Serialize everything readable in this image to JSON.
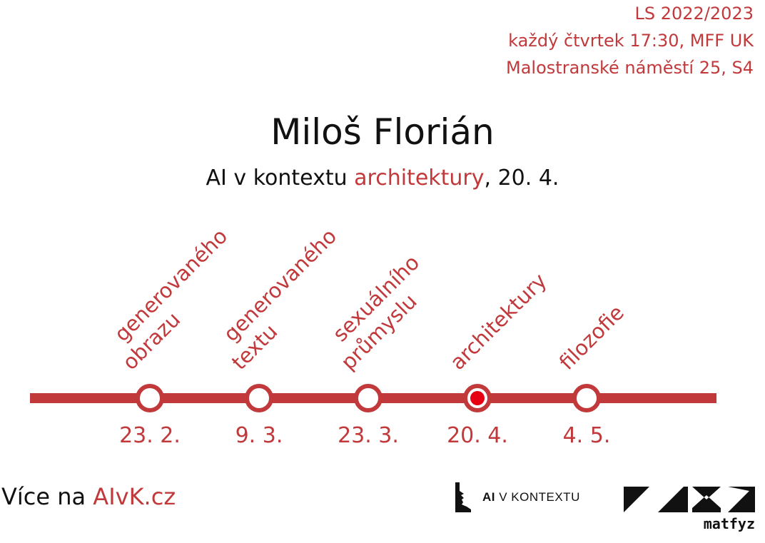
{
  "info": {
    "semester": "LS 2022/2023",
    "schedule": "každý čtvrtek 17:30, MFF UK",
    "address": "Malostranské náměstí 25, S4"
  },
  "speaker": "Miloš Florián",
  "talk": {
    "prefix": "AI v kontextu ",
    "topic": "architektury",
    "suffix": ", 20. 4."
  },
  "timeline": {
    "colors": {
      "line": "#c1393b",
      "active": "#e60012",
      "bg": "#ffffff"
    },
    "stops": [
      {
        "date": "23. 2.",
        "lines": [
          "generovaného",
          "obrazu"
        ],
        "active": false
      },
      {
        "date": "9. 3.",
        "lines": [
          "generovaného",
          "textu"
        ],
        "active": false
      },
      {
        "date": "23. 3.",
        "lines": [
          "sexuálního",
          "průmyslu"
        ],
        "active": false
      },
      {
        "date": "20. 4.",
        "lines": [
          "architektury"
        ],
        "active": true
      },
      {
        "date": "4. 5.",
        "lines": [
          "filozofie"
        ],
        "active": false
      }
    ]
  },
  "footer": {
    "more_prefix": "Více na ",
    "more_link": "AIvK.cz",
    "logo_ai": "AI",
    "logo_rest": " V KONTEXTU",
    "matfyz": "matfyz"
  }
}
